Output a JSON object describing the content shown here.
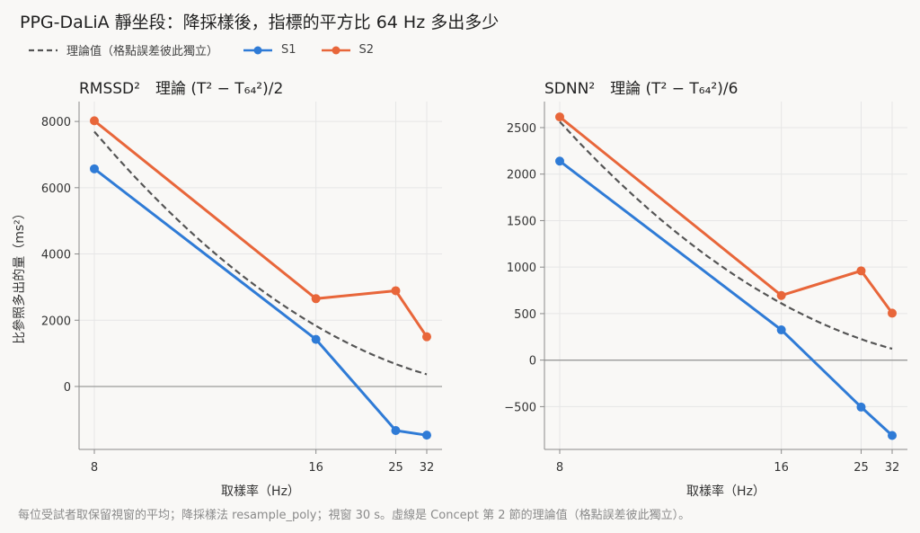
{
  "title": "PPG-DaLiA 靜坐段：降採樣後，指標的平方比 64 Hz 多出多少",
  "caption": "每位受試者取保留視窗的平均；降採樣法 resample_poly；視窗 30 s。虛線是 Concept 第 2 節的理論值（格點誤差彼此獨立）。",
  "legend": [
    {
      "label": "理論值（格點誤差彼此獨立）",
      "style": "dashed",
      "color": "#555555"
    },
    {
      "label": "S1",
      "style": "solid-marker",
      "color": "#2f7bd6"
    },
    {
      "label": "S2",
      "style": "solid-marker",
      "color": "#e8663a"
    }
  ],
  "chart_data": [
    {
      "type": "line",
      "title": "RMSSD²　理論 (T² − T₆₄²)/2",
      "xlabel": "取樣率（Hz）",
      "ylabel": "比參照多出的量（ms²）",
      "x_scale": "reciprocal",
      "x": [
        8,
        16,
        25,
        32
      ],
      "xticks": [
        "8",
        "16",
        "25",
        "32"
      ],
      "yticks": [
        "0",
        "2000",
        "4000",
        "6000",
        "8000"
      ],
      "ylim": [
        -1900,
        8600
      ],
      "grid": true,
      "series": [
        {
          "name": "S1",
          "values": [
            6570,
            1420,
            -1330,
            -1470
          ],
          "color": "#2f7bd6"
        },
        {
          "name": "S2",
          "values": [
            8020,
            2650,
            2890,
            1500
          ],
          "color": "#e8663a"
        }
      ],
      "theory": {
        "name": "理論值（格點誤差彼此獨立）",
        "coef": 500000,
        "color": "#555555"
      }
    },
    {
      "type": "line",
      "title": "SDNN²　理論 (T² − T₆₄²)/6",
      "xlabel": "取樣率（Hz）",
      "ylabel": "",
      "x_scale": "reciprocal",
      "x": [
        8,
        16,
        25,
        32
      ],
      "xticks": [
        "8",
        "16",
        "25",
        "32"
      ],
      "yticks": [
        "−500",
        "0",
        "500",
        "1000",
        "1500",
        "2000",
        "2500"
      ],
      "ylim": [
        -960,
        2780
      ],
      "grid": true,
      "series": [
        {
          "name": "S1",
          "values": [
            2140,
            325,
            -505,
            -810
          ],
          "color": "#2f7bd6"
        },
        {
          "name": "S2",
          "values": [
            2615,
            695,
            960,
            505
          ],
          "color": "#e8663a"
        }
      ],
      "theory": {
        "name": "理論值（格點誤差彼此獨立）",
        "coef": 166666.67,
        "color": "#555555"
      }
    }
  ]
}
